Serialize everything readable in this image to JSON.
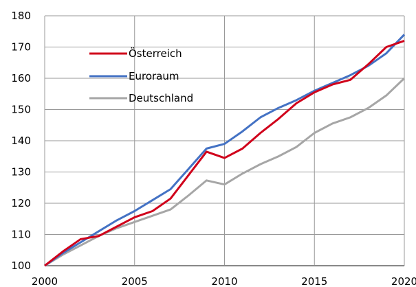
{
  "chart_data": {
    "type": "line",
    "x": [
      2000,
      2001,
      2002,
      2003,
      2004,
      2005,
      2006,
      2007,
      2008,
      2009,
      2010,
      2011,
      2012,
      2013,
      2014,
      2015,
      2016,
      2017,
      2018,
      2019,
      2020
    ],
    "series": [
      {
        "name": "Österreich",
        "color": "#d0021b",
        "values": [
          100,
          104.5,
          108.5,
          109.5,
          112.5,
          115.5,
          117.5,
          121.5,
          129,
          136.5,
          134.5,
          137.5,
          142.5,
          147,
          152,
          155.5,
          158,
          159.5,
          164.5,
          170,
          172
        ]
      },
      {
        "name": "Euroraum",
        "color": "#4472c4",
        "values": [
          100,
          104,
          107.5,
          111,
          114.5,
          117.5,
          121,
          124.5,
          131,
          137.5,
          139,
          143,
          147.5,
          150.5,
          153,
          156,
          158.5,
          161,
          164,
          168,
          174
        ]
      },
      {
        "name": "Deutschland",
        "color": "#a6a6a6",
        "values": [
          100,
          103.5,
          106.5,
          109.5,
          112,
          114,
          116,
          118,
          122.5,
          127.3,
          126,
          129.5,
          132.5,
          135,
          138,
          142.5,
          145.5,
          147.5,
          150.5,
          154.5,
          160
        ]
      }
    ],
    "xlim": [
      2000,
      2020
    ],
    "xticks": [
      2000,
      2005,
      2010,
      2015,
      2020
    ],
    "ylim": [
      100,
      180
    ],
    "yticks": [
      100,
      110,
      120,
      130,
      140,
      150,
      160,
      170,
      180
    ],
    "grid": true,
    "legend": "upper left"
  }
}
